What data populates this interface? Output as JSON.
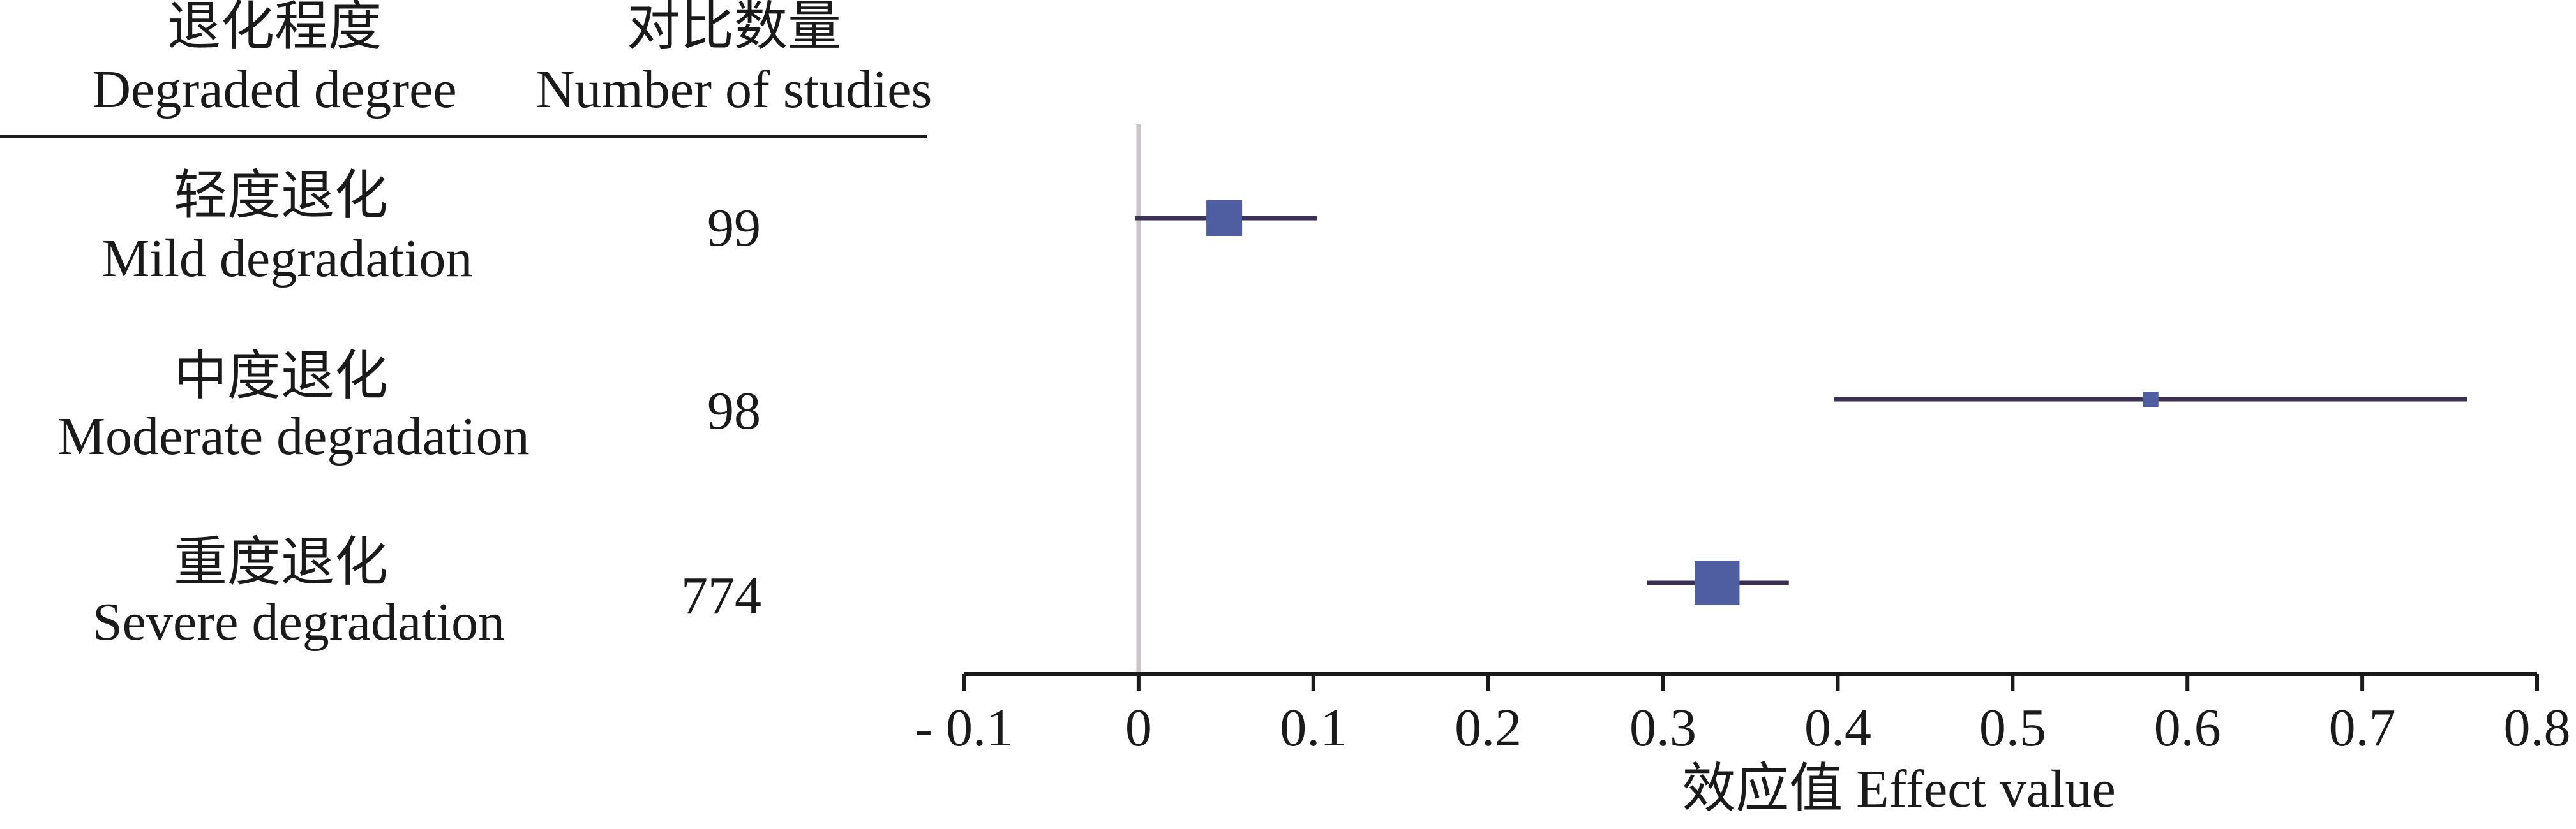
{
  "chart_data": {
    "type": "forest",
    "header": {
      "group_cn": "退化程度",
      "group_en": "Degraded degree",
      "n_cn": "对比数量",
      "n_en": "Number of studies"
    },
    "rows": [
      {
        "label_cn": "轻度退化",
        "label_en": "Mild degradation",
        "n": "99",
        "effect": 0.049,
        "ci_low": -0.002,
        "ci_high": 0.102,
        "weight": "medium"
      },
      {
        "label_cn": "中度退化",
        "label_en": "Moderate degradation",
        "n": "98",
        "effect": 0.579,
        "ci_low": 0.398,
        "ci_high": 0.76,
        "weight": "small"
      },
      {
        "label_cn": "重度退化",
        "label_en": "Severe degradation",
        "n": "774",
        "effect": 0.331,
        "ci_low": 0.291,
        "ci_high": 0.372,
        "weight": "large"
      }
    ],
    "xlabel": "效应值 Effect value",
    "xlim": [
      -0.1,
      0.8
    ],
    "xticks": [
      "- 0.1",
      "0",
      "0.1",
      "0.2",
      "0.3",
      "0.4",
      "0.5",
      "0.6",
      "0.7",
      "0.8"
    ],
    "reference_line": 0,
    "colors": {
      "marker": "#4f5ea1",
      "ci_line": "#3a2f55",
      "reference": "#c9c5c8",
      "axis": "#1a1a1a"
    }
  }
}
